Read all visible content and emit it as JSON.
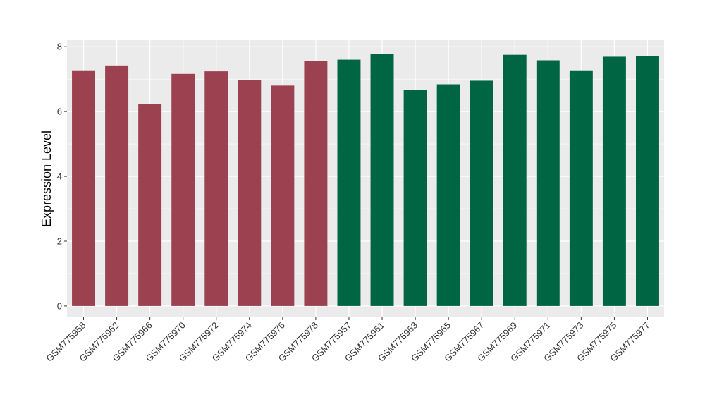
{
  "chart_data": {
    "type": "bar",
    "title": "",
    "xlabel": "",
    "ylabel": "Expression Level",
    "ylim": [
      -0.35,
      8.2
    ],
    "yticks": [
      0,
      2,
      4,
      6,
      8
    ],
    "grid": true,
    "categories": [
      "GSM775958",
      "GSM775962",
      "GSM775966",
      "GSM775970",
      "GSM775972",
      "GSM775974",
      "GSM775976",
      "GSM775978",
      "GSM775957",
      "GSM775961",
      "GSM775963",
      "GSM775965",
      "GSM775967",
      "GSM775969",
      "GSM775971",
      "GSM775973",
      "GSM775975",
      "GSM775977"
    ],
    "values": [
      7.27,
      7.42,
      6.22,
      7.16,
      7.24,
      6.97,
      6.8,
      7.55,
      7.6,
      7.77,
      6.67,
      6.84,
      6.95,
      7.75,
      7.58,
      7.27,
      7.69,
      7.71
    ],
    "groups": [
      0,
      0,
      0,
      0,
      0,
      0,
      0,
      0,
      1,
      1,
      1,
      1,
      1,
      1,
      1,
      1,
      1,
      1
    ],
    "group_colors": [
      "#9B414F",
      "#006543"
    ],
    "panel_color": "#EBEBEB",
    "grid_color": "#FFFFFF"
  }
}
